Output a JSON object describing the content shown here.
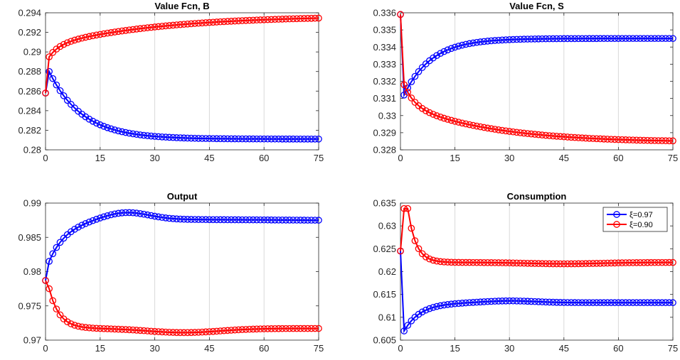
{
  "colors": {
    "series_1": "#0000ff",
    "series_2": "#ff0000",
    "grid": "#d9d9d9",
    "axis": "#262626"
  },
  "chart_data": [
    {
      "type": "line",
      "title": "Value Fcn, B",
      "xlabel": "",
      "ylabel": "",
      "xlim": [
        0,
        75
      ],
      "ylim": [
        0.28,
        0.294
      ],
      "xticks": [
        0,
        15,
        30,
        45,
        60,
        75
      ],
      "yticks": [
        0.28,
        0.282,
        0.284,
        0.286,
        0.288,
        0.29,
        0.292,
        0.294
      ],
      "xtick_labels": [
        "0",
        "15",
        "30",
        "45",
        "60",
        "75"
      ],
      "ytick_labels": [
        "0.28",
        "0.282",
        "0.284",
        "0.286",
        "0.288",
        "0.29",
        "0.292",
        "0.294"
      ],
      "grid": "vertical",
      "model": [
        {
          "initial": 0.2858,
          "start": 0.288,
          "end": 0.2811,
          "tau": 9
        },
        {
          "initial": 0.2858,
          "start": 0.2895,
          "end": 0.2936,
          "tau": 35,
          "fast_amp": 0.0012,
          "fast_tau": 3
        }
      ]
    },
    {
      "type": "line",
      "title": "Value Fcn, S",
      "xlabel": "",
      "ylabel": "",
      "xlim": [
        0,
        75
      ],
      "ylim": [
        0.328,
        0.336
      ],
      "xticks": [
        0,
        15,
        30,
        45,
        60,
        75
      ],
      "yticks": [
        0.328,
        0.329,
        0.33,
        0.331,
        0.332,
        0.333,
        0.334,
        0.335,
        0.336
      ],
      "xtick_labels": [
        "0",
        "15",
        "30",
        "45",
        "60",
        "75"
      ],
      "ytick_labels": [
        "0.328",
        "0.329",
        "0.33",
        "0.331",
        "0.332",
        "0.333",
        "0.334",
        "0.335",
        "0.336"
      ],
      "grid": "vertical",
      "model": [
        {
          "initial": 0.3359,
          "start": 0.3312,
          "end": 0.3345,
          "tau": 7.5
        },
        {
          "initial": 0.3359,
          "start": 0.3318,
          "end": 0.3286,
          "tau": 30,
          "fast_amp": 0.0012,
          "fast_tau": 3
        }
      ]
    },
    {
      "type": "line",
      "title": "Output",
      "xlabel": "",
      "ylabel": "",
      "xlim": [
        0,
        75
      ],
      "ylim": [
        0.97,
        0.99
      ],
      "xticks": [
        0,
        15,
        30,
        45,
        60,
        75
      ],
      "yticks": [
        0.97,
        0.975,
        0.98,
        0.985,
        0.99
      ],
      "xtick_labels": [
        "0",
        "15",
        "30",
        "45",
        "60",
        "75"
      ],
      "ytick_labels": [
        "0.97",
        "0.975",
        "0.98",
        "0.985",
        "0.99"
      ],
      "grid": "vertical",
      "model": [
        {
          "initial": 0.9787,
          "start": 0.9815,
          "end": 0.9876,
          "tau": 5,
          "hump_amp": 0.0011,
          "hump_center": 22,
          "hump_width": 9,
          "tail_drift": -0.0001
        },
        {
          "initial": 0.9787,
          "start": 0.9775,
          "end": 0.9717,
          "tau": 2.8,
          "dip_amp": -0.0006,
          "dip_center": 38,
          "dip_width": 14
        }
      ]
    },
    {
      "type": "line",
      "title": "Consumption",
      "xlabel": "",
      "ylabel": "",
      "xlim": [
        0,
        75
      ],
      "ylim": [
        0.605,
        0.635
      ],
      "xticks": [
        0,
        15,
        30,
        45,
        60,
        75
      ],
      "yticks": [
        0.605,
        0.61,
        0.615,
        0.62,
        0.625,
        0.63,
        0.635
      ],
      "xtick_labels": [
        "0",
        "15",
        "30",
        "45",
        "60",
        "75"
      ],
      "ytick_labels": [
        "0.605",
        "0.61",
        "0.615",
        "0.62",
        "0.625",
        "0.63",
        "0.635"
      ],
      "grid": "vertical",
      "legend": {
        "position": "top-right",
        "entries": [
          "ξ=0.97",
          "ξ=0.90"
        ]
      },
      "model": [
        {
          "initial": 0.6245,
          "start": 0.607,
          "end": 0.6132,
          "tau": 4.5,
          "hump_amp": 0.0004,
          "hump_center": 30,
          "hump_width": 10
        },
        {
          "initial": 0.6245,
          "start": 0.6338,
          "end": 0.622,
          "tau": 2.2,
          "peak_hold": 2,
          "dip_amp": -0.0003,
          "dip_center": 45,
          "dip_width": 14
        }
      ]
    }
  ]
}
